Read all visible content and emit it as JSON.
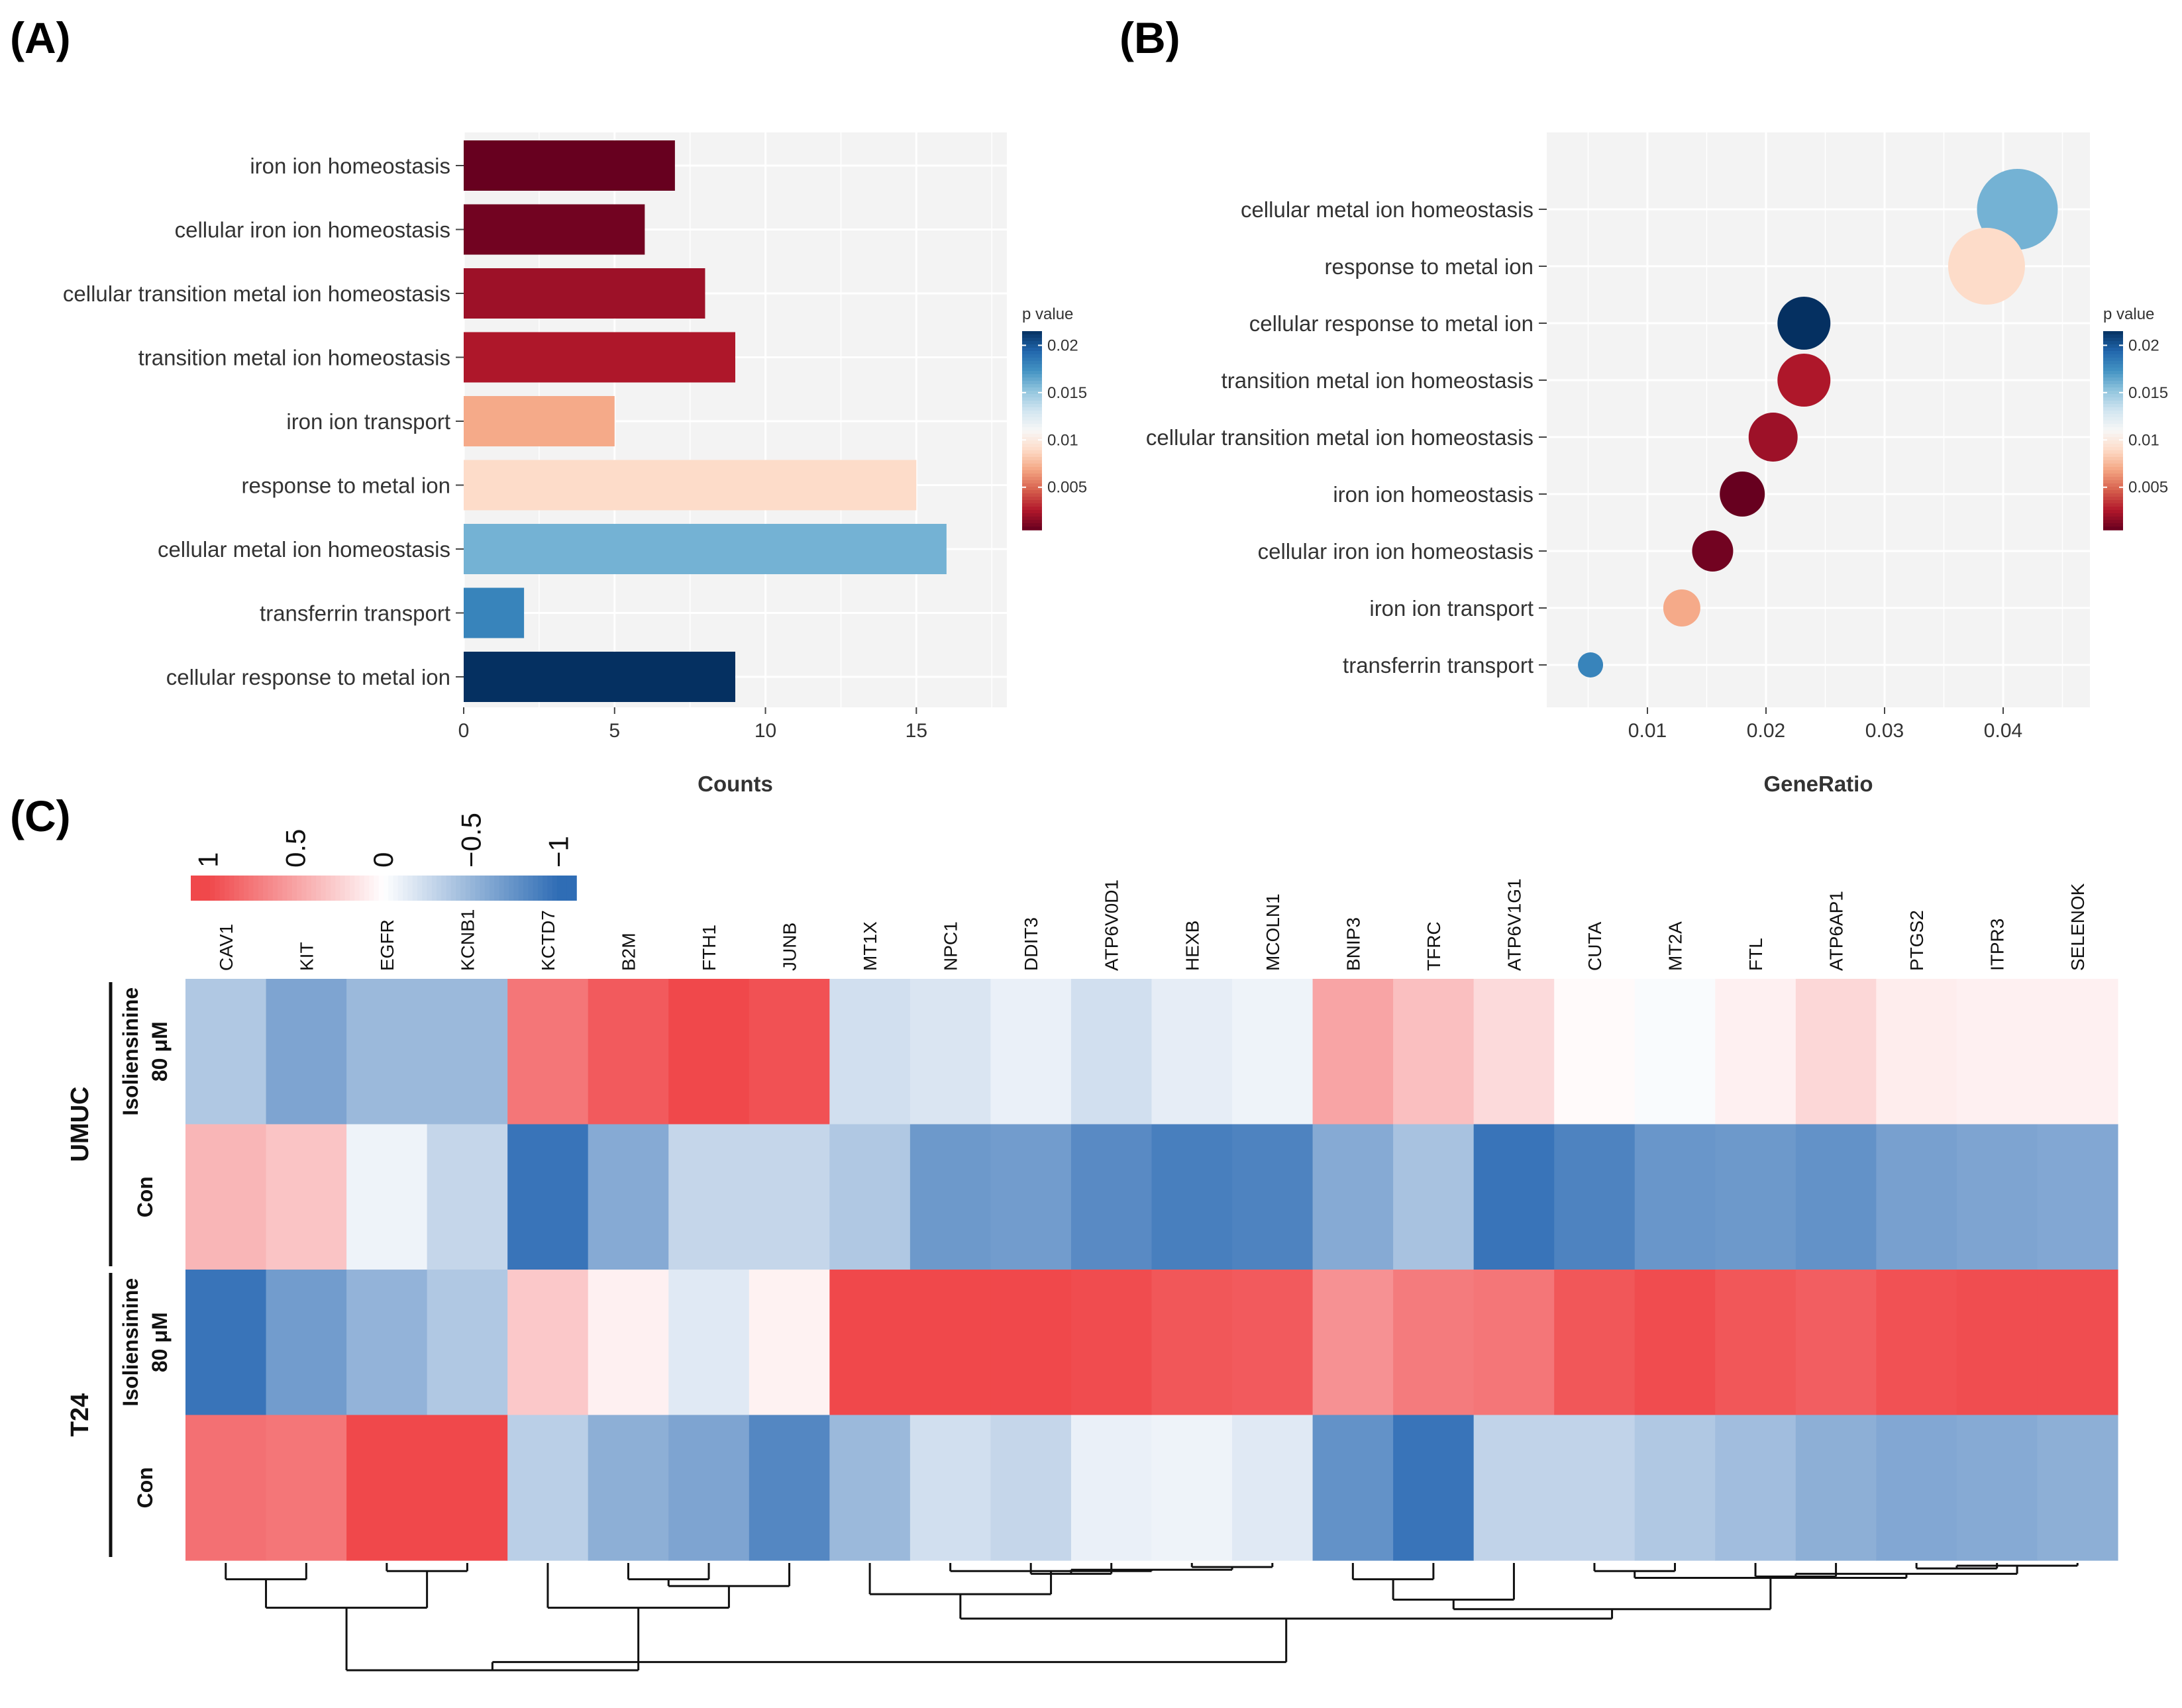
{
  "panels": {
    "a_label": "(A)",
    "b_label": "(B)",
    "c_label": "(C)"
  },
  "colors": {
    "pvalue_scale": [
      "#67001f",
      "#b2182b",
      "#d6604d",
      "#f4a582",
      "#fddbc7",
      "#f7f7f7",
      "#d1e5f0",
      "#92c5de",
      "#4393c3",
      "#2166ac",
      "#053061"
    ],
    "heat_pos": "#f0484b",
    "heat_mid": "#ffffff",
    "heat_neg": "#2f6db5",
    "panel_bg": "#f3f3f3",
    "grid": "#ffffff"
  },
  "chart_data": [
    {
      "id": "A",
      "type": "bar",
      "orientation": "horizontal",
      "categories": [
        "iron ion homeostasis",
        "cellular iron ion homeostasis",
        "cellular transition metal ion homeostasis",
        "transition metal ion homeostasis",
        "iron ion transport",
        "response to metal ion",
        "cellular metal ion homeostasis",
        "transferrin transport",
        "cellular response to metal ion"
      ],
      "values": [
        7,
        6,
        8,
        9,
        5,
        15,
        16,
        2,
        9
      ],
      "pvalues": [
        0.0005,
        0.0008,
        0.002,
        0.0025,
        0.007,
        0.009,
        0.016,
        0.018,
        0.022
      ],
      "xlabel": "Counts",
      "xlim": [
        0,
        18
      ],
      "xticks": [
        0,
        5,
        10,
        15
      ],
      "legend_title": "p value",
      "legend_ticks": [
        "0.02",
        "0.015",
        "0.01",
        "0.005"
      ],
      "legend_tick_values": [
        0.02,
        0.015,
        0.01,
        0.005
      ],
      "legend_range": [
        0.0005,
        0.0215
      ]
    },
    {
      "id": "B",
      "type": "scatter",
      "categories": [
        "cellular metal ion homeostasis",
        "response to metal ion",
        "cellular response to metal ion",
        "transition metal ion homeostasis",
        "cellular transition metal ion homeostasis",
        "iron ion homeostasis",
        "cellular iron ion homeostasis",
        "iron ion transport",
        "transferrin transport"
      ],
      "x": [
        0.0412,
        0.0386,
        0.0232,
        0.0232,
        0.0206,
        0.018,
        0.0155,
        0.0129,
        0.0052
      ],
      "counts": [
        16,
        15,
        9,
        9,
        8,
        7,
        6,
        5,
        2
      ],
      "pvalues": [
        0.016,
        0.009,
        0.022,
        0.0025,
        0.002,
        0.0005,
        0.0008,
        0.007,
        0.018
      ],
      "xlabel": "GeneRatio",
      "xlim": [
        0.0,
        0.0465
      ],
      "xticks": [
        0.01,
        0.02,
        0.03,
        0.04
      ],
      "xtick_labels": [
        "0.01",
        "0.02",
        "0.03",
        "0.04"
      ],
      "legend_title": "p value",
      "legend_ticks": [
        "0.02",
        "0.015",
        "0.01",
        "0.005"
      ],
      "legend_tick_values": [
        0.02,
        0.015,
        0.01,
        0.005
      ],
      "legend_range": [
        0.0005,
        0.0215
      ]
    },
    {
      "id": "C",
      "type": "heatmap",
      "columns": [
        "CAV1",
        "KIT",
        "EGFR",
        "KCNB1",
        "KCTD7",
        "B2M",
        "FTH1",
        "JUNB",
        "MT1X",
        "NPC1",
        "DDIT3",
        "ATP6V0D1",
        "HEXB",
        "MCOLN1",
        "BNIP3",
        "TFRC",
        "ATP6V1G1",
        "CUTA",
        "MT2A",
        "FTL",
        "ATP6AP1",
        "PTGS2",
        "ITPR3",
        "SELENOK"
      ],
      "groups": [
        {
          "label": "UMUC",
          "rows": [
            {
              "label_line1": "Isoliensinine",
              "label_line2": "80 μM"
            },
            {
              "label_line1": "Con",
              "label_line2": ""
            }
          ]
        },
        {
          "label": "T24",
          "rows": [
            {
              "label_line1": "Isoliensinine",
              "label_line2": "80 μM"
            },
            {
              "label_line1": "Con",
              "label_line2": ""
            }
          ]
        }
      ],
      "values": [
        [
          -0.38,
          -0.62,
          -0.48,
          -0.48,
          0.75,
          0.9,
          1.0,
          0.95,
          -0.22,
          -0.18,
          -0.1,
          -0.22,
          -0.12,
          -0.08,
          0.5,
          0.35,
          0.2,
          0.03,
          -0.03,
          0.08,
          0.22,
          0.1,
          0.08,
          0.08
        ],
        [
          0.4,
          0.32,
          -0.08,
          -0.28,
          -0.95,
          -0.58,
          -0.28,
          -0.28,
          -0.38,
          -0.7,
          -0.68,
          -0.8,
          -0.88,
          -0.85,
          -0.58,
          -0.42,
          -0.95,
          -0.85,
          -0.72,
          -0.7,
          -0.75,
          -0.65,
          -0.62,
          -0.6
        ],
        [
          -0.95,
          -0.68,
          -0.52,
          -0.38,
          0.3,
          0.08,
          -0.15,
          0.07,
          1.0,
          1.0,
          1.0,
          0.98,
          0.92,
          0.9,
          0.6,
          0.72,
          0.75,
          0.92,
          0.98,
          0.92,
          0.88,
          0.95,
          0.97,
          0.97
        ],
        [
          0.78,
          0.75,
          1.0,
          1.0,
          -0.33,
          -0.55,
          -0.62,
          -0.82,
          -0.48,
          -0.22,
          -0.28,
          -0.1,
          -0.08,
          -0.15,
          -0.75,
          -0.95,
          -0.3,
          -0.3,
          -0.38,
          -0.45,
          -0.55,
          -0.6,
          -0.58,
          -0.55
        ]
      ],
      "legend_ticks": [
        "1",
        "0.5",
        "0",
        "−0.5",
        "−1"
      ],
      "legend_tick_values": [
        1,
        0.5,
        0,
        -0.5,
        -1
      ],
      "legend_range": [
        1.1,
        -1.1
      ],
      "dendrogram": {
        "order": [
          "CAV1",
          "KIT",
          "EGFR",
          "KCNB1",
          "KCTD7",
          "B2M",
          "FTH1",
          "JUNB",
          "MT1X",
          "NPC1",
          "DDIT3",
          "ATP6V0D1",
          "HEXB",
          "MCOLN1",
          "BNIP3",
          "TFRC",
          "ATP6V1G1",
          "CUTA",
          "MT2A",
          "FTL",
          "ATP6AP1",
          "PTGS2",
          "ITPR3",
          "SELENOK"
        ],
        "merges": [
          [
            0,
            1,
            0.12
          ],
          [
            2,
            3,
            0.06
          ],
          [
            24,
            25,
            0.33
          ],
          [
            5,
            6,
            0.12
          ],
          [
            7,
            27,
            0.17
          ],
          [
            4,
            28,
            0.33
          ],
          [
            29,
            26,
            0.79
          ],
          [
            10,
            11,
            0.08
          ],
          [
            12,
            13,
            0.03
          ],
          [
            31,
            32,
            0.05
          ],
          [
            9,
            33,
            0.06
          ],
          [
            8,
            34,
            0.23
          ],
          [
            14,
            15,
            0.12
          ],
          [
            36,
            16,
            0.27
          ],
          [
            17,
            18,
            0.06
          ],
          [
            19,
            20,
            0.1
          ],
          [
            21,
            22,
            0.04
          ],
          [
            40,
            23,
            0.02
          ],
          [
            39,
            41,
            0.08
          ],
          [
            38,
            42,
            0.11
          ],
          [
            37,
            43,
            0.34
          ],
          [
            35,
            44,
            0.41
          ],
          [
            30,
            45,
            0.73
          ]
        ],
        "max_height": 1.0
      }
    }
  ]
}
